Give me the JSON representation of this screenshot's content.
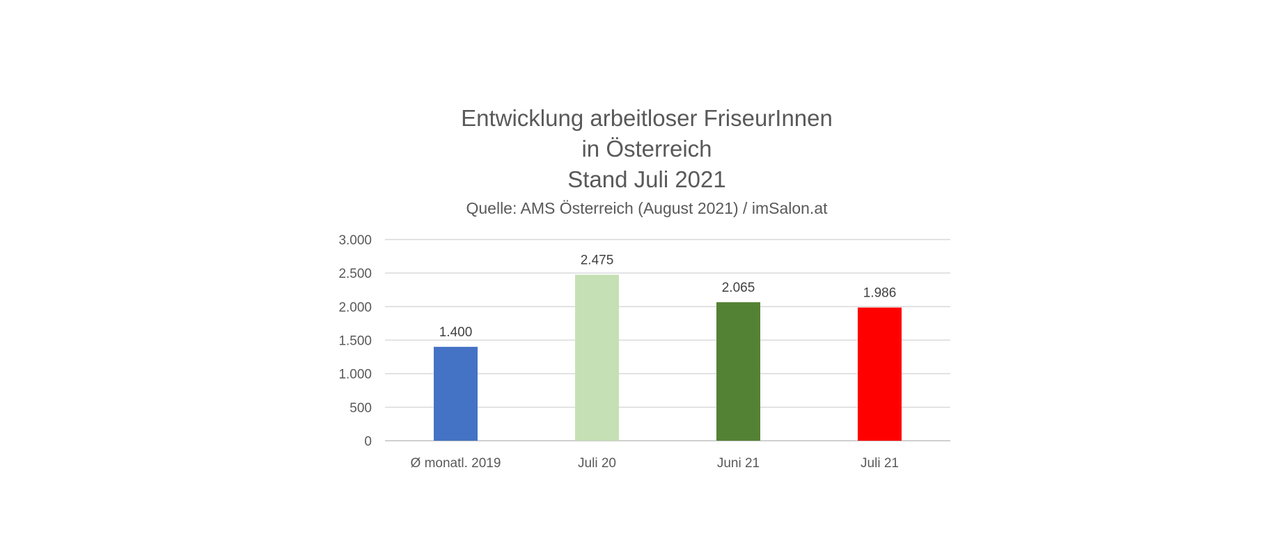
{
  "chart_data": {
    "type": "bar",
    "title": [
      "Entwicklung arbeitloser FriseurInnen",
      "in Österreich",
      "Stand Juli 2021"
    ],
    "subtitle": "Quelle: AMS Österreich (August 2021) / imSalon.at",
    "xlabel": "",
    "ylabel": "",
    "categories": [
      "Ø monatl. 2019",
      "Juli 20",
      "Juni 21",
      "Juli 21"
    ],
    "values": [
      1400,
      2475,
      2065,
      1986
    ],
    "value_labels": [
      "1.400",
      "2.475",
      "2.065",
      "1.986"
    ],
    "bar_colors": [
      "#4472c4",
      "#c5e0b4",
      "#548235",
      "#ff0000"
    ],
    "ylim": [
      0,
      3000
    ],
    "yticks": [
      0,
      500,
      1000,
      1500,
      2000,
      2500,
      3000
    ],
    "ytick_labels": [
      "0",
      "500",
      "1.000",
      "1.500",
      "2.000",
      "2.500",
      "3.000"
    ],
    "grid": true,
    "legend": false
  }
}
